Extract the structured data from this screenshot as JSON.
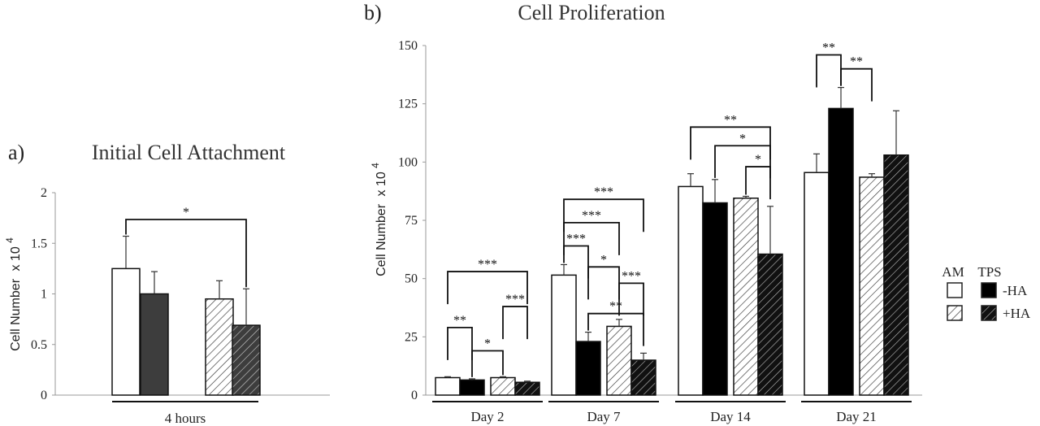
{
  "colors": {
    "am_fill": "#ffffff",
    "tps_fill_a": "#3d3d3d",
    "tps_fill_b": "#000000",
    "axis": "#999999",
    "ink": "#222222"
  },
  "chart_data": [
    {
      "type": "bar",
      "panel_label": "a)",
      "title": "Initial Cell Attachment",
      "ylabel": "Cell Number",
      "ylabel_unit": "x 10",
      "ylabel_exp": "4",
      "ylim": [
        0,
        2
      ],
      "yticks": [
        "0",
        "0.5",
        "1",
        "1.5",
        "2"
      ],
      "ytick_values": [
        0,
        0.5,
        1,
        1.5,
        2
      ],
      "categories": [
        "4 hours"
      ],
      "bars": [
        {
          "key": "AM-HA",
          "value": 1.25,
          "err": 0.32
        },
        {
          "key": "TPS-HA",
          "value": 1.0,
          "err": 0.22
        },
        {
          "key": "AM+HA",
          "value": 0.95,
          "err": 0.18
        },
        {
          "key": "TPS+HA",
          "value": 0.69,
          "err": 0.36
        }
      ],
      "significance": [
        {
          "from": 0,
          "to": 3,
          "label": "*"
        }
      ]
    },
    {
      "type": "bar",
      "panel_label": "b)",
      "title": "Cell Proliferation",
      "ylabel": "Cell Number",
      "ylabel_unit": "x 10",
      "ylabel_exp": "4",
      "ylim": [
        0,
        150
      ],
      "yticks": [
        "0",
        "25",
        "50",
        "75",
        "100",
        "125",
        "150"
      ],
      "ytick_values": [
        0,
        25,
        50,
        75,
        100,
        125,
        150
      ],
      "categories": [
        "Day 2",
        "Day 7",
        "Day 14",
        "Day 21"
      ],
      "groups": [
        {
          "bars": [
            {
              "key": "AM-HA",
              "value": 7.5,
              "err": 0.4
            },
            {
              "key": "TPS-HA",
              "value": 6.5,
              "err": 0.5
            },
            {
              "key": "AM+HA",
              "value": 7.5,
              "err": 0.4
            },
            {
              "key": "TPS+HA",
              "value": 5.5,
              "err": 0.5
            }
          ],
          "significance": [
            {
              "from": 0,
              "to": 3,
              "y": 53,
              "label": "***"
            },
            {
              "from": 0,
              "to": 1,
              "y": 29,
              "label": "**"
            },
            {
              "from": 1,
              "to": 2,
              "y": 19,
              "label": "*"
            },
            {
              "from": 2,
              "to": 3,
              "y": 38,
              "label": "***"
            }
          ]
        },
        {
          "bars": [
            {
              "key": "AM-HA",
              "value": 51.5,
              "err": 4.5
            },
            {
              "key": "TPS-HA",
              "value": 23,
              "err": 4
            },
            {
              "key": "AM+HA",
              "value": 29.5,
              "err": 3
            },
            {
              "key": "TPS+HA",
              "value": 15,
              "err": 3
            }
          ],
          "significance": [
            {
              "from": 0,
              "to": 3,
              "y": 84,
              "label": "***"
            },
            {
              "from": 0,
              "to": 2,
              "y": 74,
              "label": "***"
            },
            {
              "from": 0,
              "to": 1,
              "y": 64,
              "label": "***"
            },
            {
              "from": 1,
              "to": 2,
              "y": 55,
              "label": "*"
            },
            {
              "from": 2,
              "to": 3,
              "y": 48,
              "label": "***"
            },
            {
              "from": 1,
              "to": 3,
              "y": 35,
              "label": "**"
            }
          ]
        },
        {
          "bars": [
            {
              "key": "AM-HA",
              "value": 89.5,
              "err": 5.5
            },
            {
              "key": "TPS-HA",
              "value": 82.5,
              "err": 10
            },
            {
              "key": "AM+HA",
              "value": 84.5,
              "err": 0.8
            },
            {
              "key": "TPS+HA",
              "value": 60.5,
              "err": 20.5
            }
          ],
          "significance": [
            {
              "from": 0,
              "to": 3,
              "y": 115,
              "label": "**"
            },
            {
              "from": 1,
              "to": 3,
              "y": 107,
              "label": "*"
            },
            {
              "from": 2,
              "to": 3,
              "y": 98,
              "label": "*"
            }
          ]
        },
        {
          "bars": [
            {
              "key": "AM-HA",
              "value": 95.5,
              "err": 8
            },
            {
              "key": "TPS-HA",
              "value": 123,
              "err": 9
            },
            {
              "key": "AM+HA",
              "value": 93.5,
              "err": 1.5
            },
            {
              "key": "TPS+HA",
              "value": 103,
              "err": 19
            }
          ],
          "significance": [
            {
              "from": 0,
              "to": 1,
              "y": 146,
              "label": "**"
            },
            {
              "from": 1,
              "to": 2,
              "y": 140,
              "label": "**"
            }
          ]
        }
      ]
    }
  ],
  "legend": {
    "col_am": "AM",
    "col_tps": "TPS",
    "row_minus": "-HA",
    "row_plus": "+HA",
    "placement": "right"
  }
}
